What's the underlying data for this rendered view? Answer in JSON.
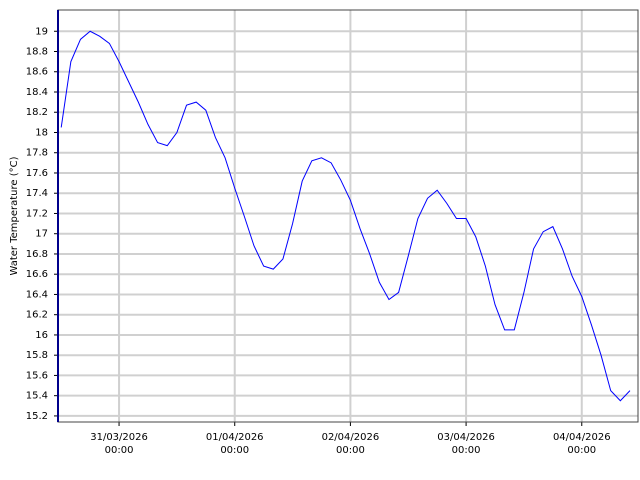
{
  "chart_data": {
    "type": "line",
    "y_label": "Water Temperature (°C)",
    "x": [
      "2026-03-30T12:00",
      "2026-03-30T14:00",
      "2026-03-30T16:00",
      "2026-03-30T18:00",
      "2026-03-30T20:00",
      "2026-03-30T22:00",
      "2026-03-31T00:00",
      "2026-03-31T02:00",
      "2026-03-31T04:00",
      "2026-03-31T06:00",
      "2026-03-31T08:00",
      "2026-03-31T10:00",
      "2026-03-31T12:00",
      "2026-03-31T14:00",
      "2026-03-31T16:00",
      "2026-03-31T18:00",
      "2026-03-31T20:00",
      "2026-03-31T22:00",
      "2026-04-01T00:00",
      "2026-04-01T02:00",
      "2026-04-01T04:00",
      "2026-04-01T06:00",
      "2026-04-01T08:00",
      "2026-04-01T10:00",
      "2026-04-01T12:00",
      "2026-04-01T14:00",
      "2026-04-01T16:00",
      "2026-04-01T18:00",
      "2026-04-01T20:00",
      "2026-04-01T22:00",
      "2026-04-02T00:00",
      "2026-04-02T02:00",
      "2026-04-02T04:00",
      "2026-04-02T06:00",
      "2026-04-02T08:00",
      "2026-04-02T10:00",
      "2026-04-02T12:00",
      "2026-04-02T14:00",
      "2026-04-02T16:00",
      "2026-04-02T18:00",
      "2026-04-02T20:00",
      "2026-04-02T22:00",
      "2026-04-03T00:00",
      "2026-04-03T02:00",
      "2026-04-03T04:00",
      "2026-04-03T06:00",
      "2026-04-03T08:00",
      "2026-04-03T10:00",
      "2026-04-03T12:00",
      "2026-04-03T14:00",
      "2026-04-03T16:00",
      "2026-04-03T18:00",
      "2026-04-03T20:00",
      "2026-04-03T22:00",
      "2026-04-04T00:00",
      "2026-04-04T02:00",
      "2026-04-04T04:00",
      "2026-04-04T06:00",
      "2026-04-04T08:00",
      "2026-04-04T10:00"
    ],
    "series": [
      {
        "color": "#0000ff",
        "values": [
          18.05,
          18.7,
          18.92,
          19.0,
          18.95,
          18.88,
          18.7,
          18.5,
          18.3,
          18.08,
          17.9,
          17.87,
          18.0,
          18.27,
          18.3,
          18.22,
          17.95,
          17.75,
          17.45,
          17.17,
          16.88,
          16.68,
          16.65,
          16.75,
          17.1,
          17.52,
          17.72,
          17.75,
          17.7,
          17.53,
          17.33,
          17.05,
          16.8,
          16.52,
          16.35,
          16.42,
          16.78,
          17.15,
          17.35,
          17.43,
          17.3,
          17.15,
          17.15,
          16.97,
          16.68,
          16.3,
          16.05,
          16.05,
          16.42,
          16.85,
          17.02,
          17.07,
          16.85,
          16.58,
          16.38,
          16.1,
          15.8,
          15.45,
          15.35,
          15.45
        ]
      }
    ],
    "xlim": [
      "2026-03-30T11:20",
      "2026-04-04T11:40"
    ],
    "xticks": [
      {
        "value": "2026-03-31T00:00",
        "label": [
          "31/03/2026",
          "00:00"
        ]
      },
      {
        "value": "2026-04-01T00:00",
        "label": [
          "01/04/2026",
          "00:00"
        ]
      },
      {
        "value": "2026-04-02T00:00",
        "label": [
          "02/04/2026",
          "00:00"
        ]
      },
      {
        "value": "2026-04-03T00:00",
        "label": [
          "03/04/2026",
          "00:00"
        ]
      },
      {
        "value": "2026-04-04T00:00",
        "label": [
          "04/04/2026",
          "00:00"
        ]
      }
    ],
    "ylim": [
      15.14,
      19.21
    ],
    "yticks": [
      15.2,
      15.4,
      15.6,
      15.8,
      16,
      16.2,
      16.4,
      16.6,
      16.8,
      17,
      17.2,
      17.4,
      17.6,
      17.8,
      18,
      18.2,
      18.4,
      18.6,
      18.8,
      19
    ],
    "grid": true
  }
}
